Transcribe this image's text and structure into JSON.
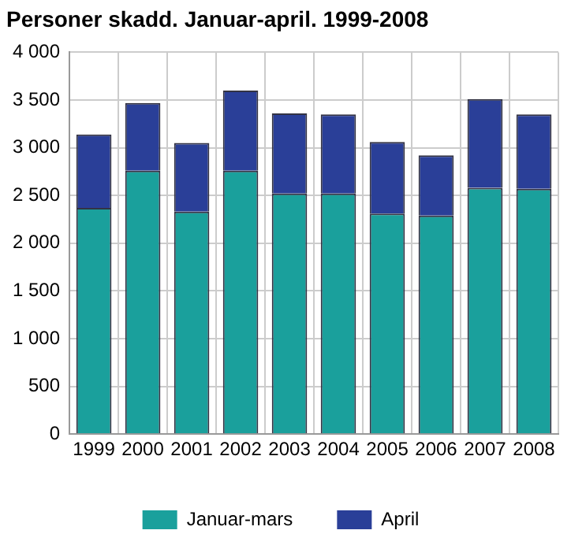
{
  "chart_data": {
    "type": "bar",
    "title": "Personer skadd. Januar-april. 1999-2008",
    "stacked": true,
    "categories": [
      "1999",
      "2000",
      "2001",
      "2002",
      "2003",
      "2004",
      "2005",
      "2006",
      "2007",
      "2008"
    ],
    "series": [
      {
        "name": "Januar-mars",
        "color": "#1aa09c",
        "values": [
          2370,
          2760,
          2330,
          2760,
          2520,
          2520,
          2310,
          2290,
          2580,
          2570
        ]
      },
      {
        "name": "April",
        "color": "#2a3f98",
        "values": [
          770,
          710,
          720,
          840,
          840,
          830,
          750,
          630,
          930,
          780
        ]
      }
    ],
    "ylim": [
      0,
      4000
    ],
    "yticks": [
      {
        "value": 0,
        "label": "0"
      },
      {
        "value": 500,
        "label": "500"
      },
      {
        "value": 1000,
        "label": "1 000"
      },
      {
        "value": 1500,
        "label": "1 500"
      },
      {
        "value": 2000,
        "label": "2 000"
      },
      {
        "value": 2500,
        "label": "2 500"
      },
      {
        "value": 3000,
        "label": "3 000"
      },
      {
        "value": 3500,
        "label": "3 500"
      },
      {
        "value": 4000,
        "label": "4 000"
      }
    ],
    "grid": true,
    "legend": "bottom"
  }
}
